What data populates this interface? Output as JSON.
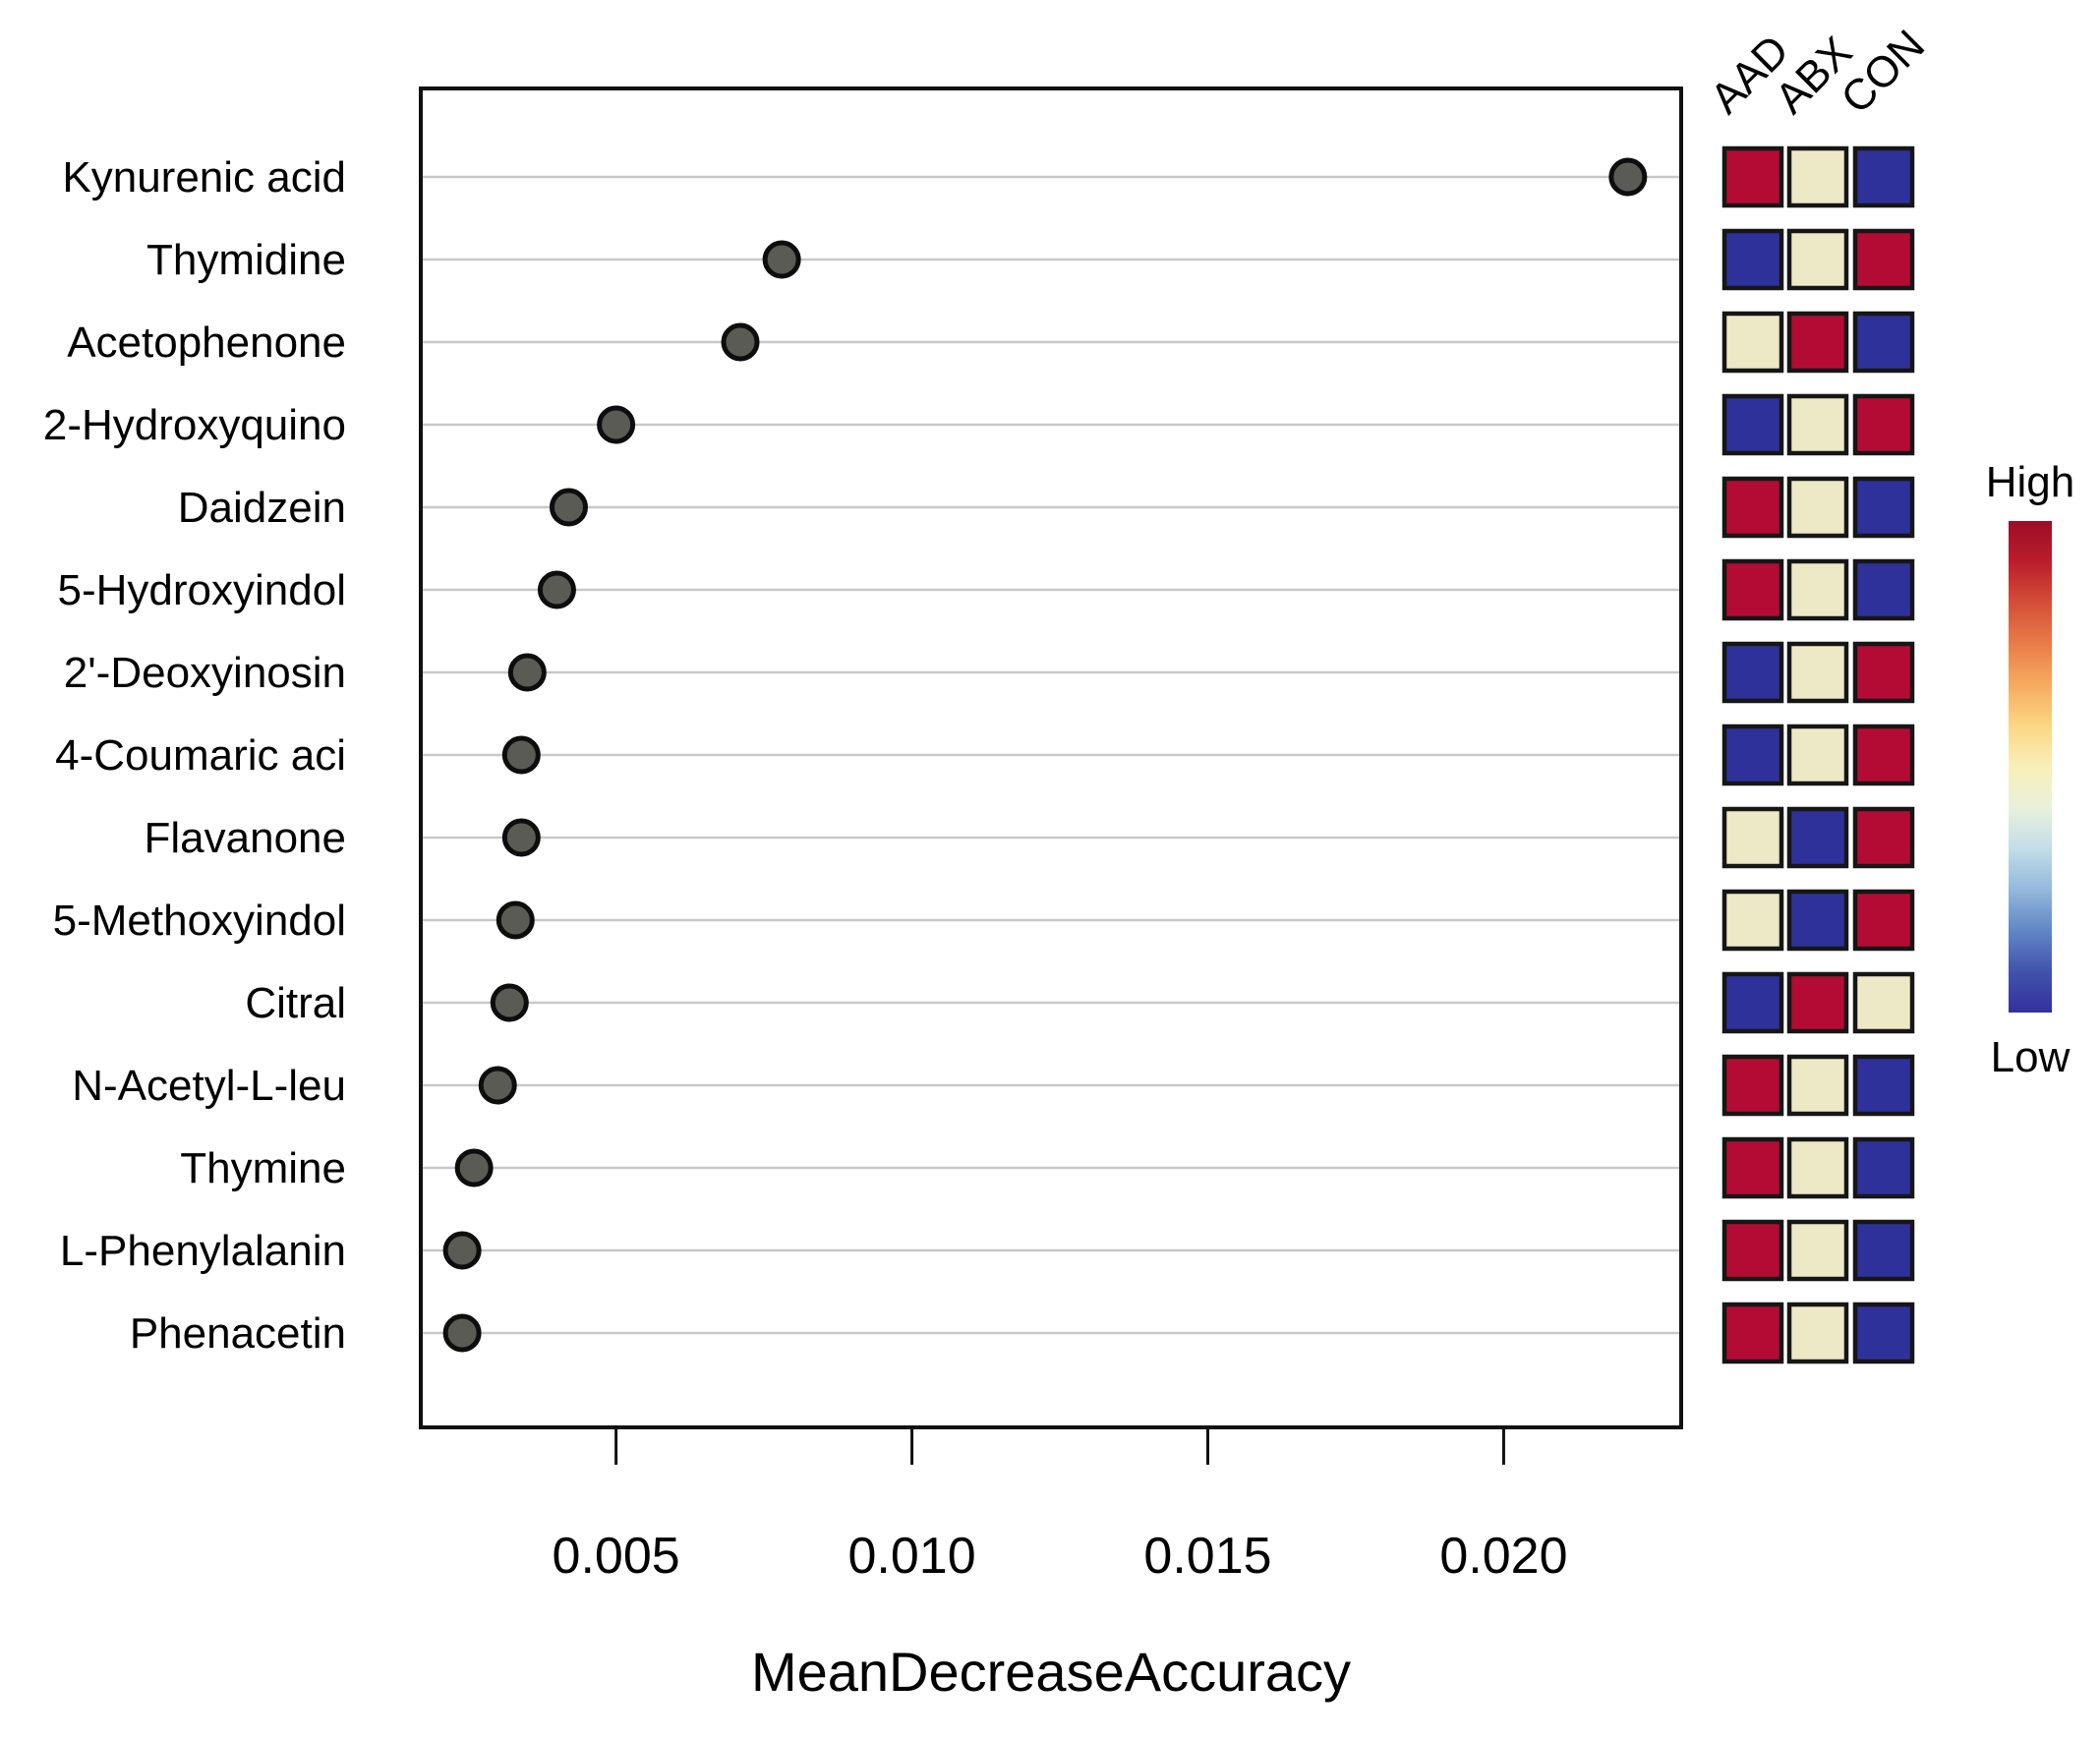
{
  "chart_data": {
    "type": "scatter",
    "title": "",
    "xlabel": "MeanDecreaseAccuracy",
    "ylabel": "",
    "xlim": [
      0.0017,
      0.023
    ],
    "xticks": [
      0.005,
      0.01,
      0.015,
      0.02
    ],
    "xtick_labels": [
      "0.005",
      "0.010",
      "0.015",
      "0.020"
    ],
    "grid": "horizontal-only",
    "legend_position": "right",
    "categories": [
      "Kynurenic acid",
      "Thymidine",
      "Acetophenone",
      "2-Hydroxyquino",
      "Daidzein",
      "5-Hydroxyindol",
      "2'-Deoxyinosin",
      "4-Coumaric aci",
      "Flavanone",
      "5-Methoxyindol",
      "Citral",
      "N-Acetyl-L-leu",
      "Thymine",
      "L-Phenylalanin",
      "Phenacetin"
    ],
    "values": [
      0.0221,
      0.0078,
      0.0071,
      0.005,
      0.0042,
      0.004,
      0.0035,
      0.0034,
      0.0034,
      0.0033,
      0.0032,
      0.003,
      0.0026,
      0.0024,
      0.0024
    ],
    "point_style": {
      "fill": "#5b5b56",
      "stroke": "#0d0d0d"
    },
    "grid_color": "#c8c8c8",
    "heatmap": {
      "columns": [
        "AAD",
        "ABX",
        "CON"
      ],
      "cells": [
        [
          "high",
          "mid",
          "low"
        ],
        [
          "low",
          "mid",
          "high"
        ],
        [
          "mid",
          "high",
          "low"
        ],
        [
          "low",
          "mid",
          "high"
        ],
        [
          "high",
          "mid",
          "low"
        ],
        [
          "high",
          "mid",
          "low"
        ],
        [
          "low",
          "mid",
          "high"
        ],
        [
          "low",
          "mid",
          "high"
        ],
        [
          "mid",
          "low",
          "high"
        ],
        [
          "mid",
          "low",
          "high"
        ],
        [
          "low",
          "high",
          "mid"
        ],
        [
          "high",
          "mid",
          "low"
        ],
        [
          "high",
          "mid",
          "low"
        ],
        [
          "high",
          "mid",
          "low"
        ],
        [
          "high",
          "mid",
          "low"
        ]
      ],
      "level_colors": {
        "high": "#b30b34",
        "mid": "#ede9c7",
        "low": "#2f319a"
      },
      "cell_border_color": "#161616"
    },
    "colorbar": {
      "high_label": "High",
      "low_label": "Low",
      "gradient_top_to_bottom": [
        "#9c0d28",
        "#bb1d2c",
        "#d44f38",
        "#e97c49",
        "#f6ab5e",
        "#fbd784",
        "#f9efb8",
        "#e9f1dc",
        "#c3dde9",
        "#93b9dc",
        "#6187c6",
        "#4153ac",
        "#33309b"
      ]
    }
  }
}
